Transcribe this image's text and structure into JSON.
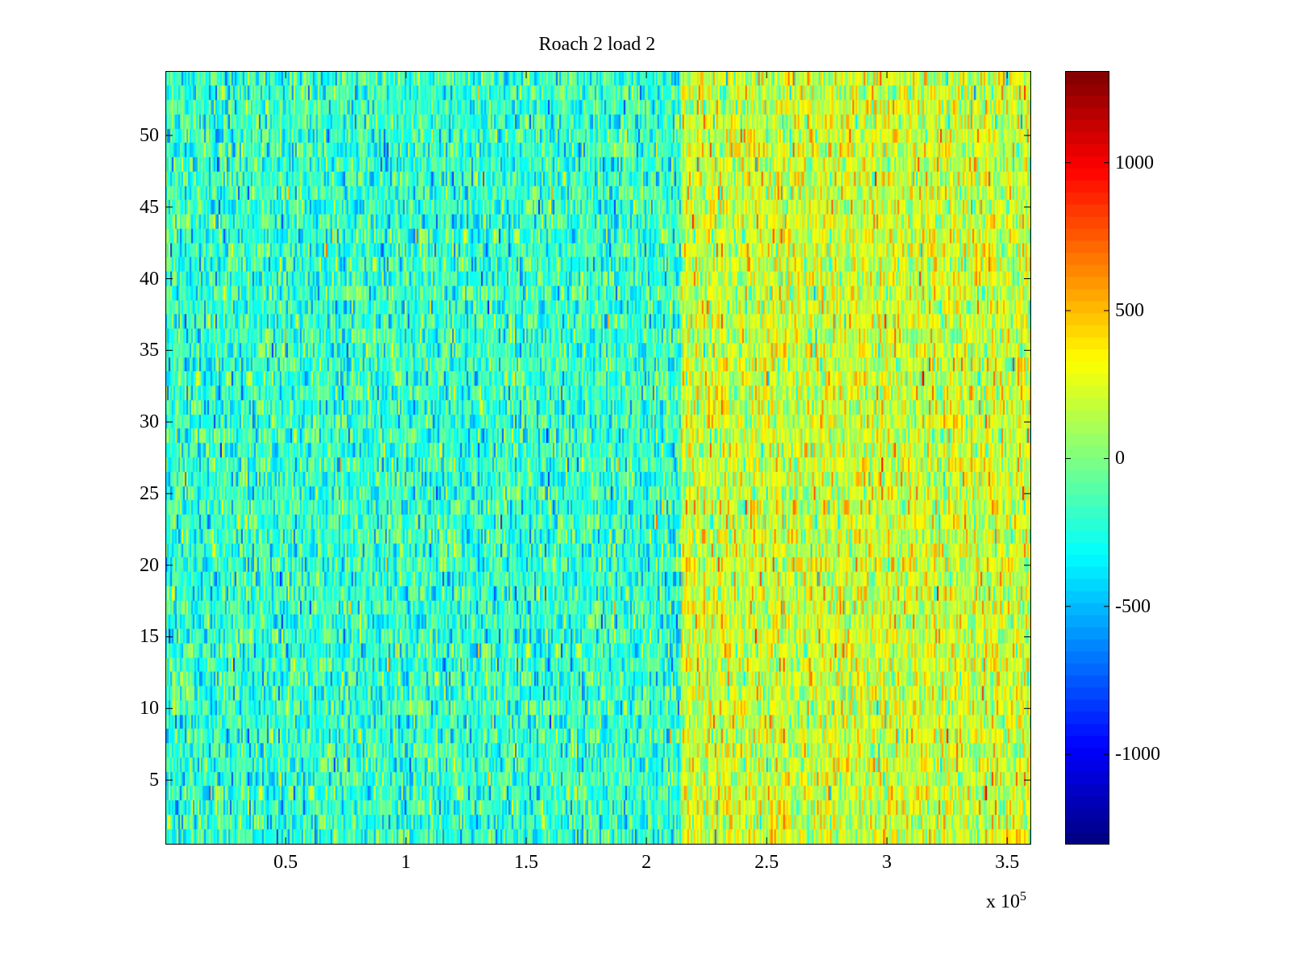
{
  "chart_data": {
    "type": "heatmap",
    "title": "Roach 2 load 2",
    "xlabel": "",
    "ylabel": "",
    "x_exponent_label": "x 10",
    "x_exponent": "5",
    "xlim": [
      0,
      360000
    ],
    "ylim": [
      0.5,
      54.5
    ],
    "rows": 54,
    "x_ticks": [
      {
        "value": 50000,
        "label": "0.5"
      },
      {
        "value": 100000,
        "label": "1"
      },
      {
        "value": 150000,
        "label": "1.5"
      },
      {
        "value": 200000,
        "label": "2"
      },
      {
        "value": 250000,
        "label": "2.5"
      },
      {
        "value": 300000,
        "label": "3"
      },
      {
        "value": 350000,
        "label": "3.5"
      }
    ],
    "y_ticks": [
      {
        "value": 5,
        "label": "5"
      },
      {
        "value": 10,
        "label": "10"
      },
      {
        "value": 15,
        "label": "15"
      },
      {
        "value": 20,
        "label": "20"
      },
      {
        "value": 25,
        "label": "25"
      },
      {
        "value": 30,
        "label": "30"
      },
      {
        "value": 35,
        "label": "35"
      },
      {
        "value": 40,
        "label": "40"
      },
      {
        "value": 45,
        "label": "45"
      },
      {
        "value": 50,
        "label": "50"
      }
    ],
    "colormap": "jet",
    "clim": [
      -1305,
      1310
    ],
    "colorbar_ticks": [
      {
        "value": 1000,
        "label": "1000"
      },
      {
        "value": 500,
        "label": "500"
      },
      {
        "value": 0,
        "label": "0"
      },
      {
        "value": -500,
        "label": "-500"
      },
      {
        "value": -1000,
        "label": "-1000"
      }
    ],
    "segments": [
      {
        "x_range": [
          0,
          215000
        ],
        "mean": -200,
        "std": 210
      },
      {
        "x_range": [
          215000,
          360000
        ],
        "mean": 200,
        "std": 210
      }
    ],
    "grid": false
  }
}
